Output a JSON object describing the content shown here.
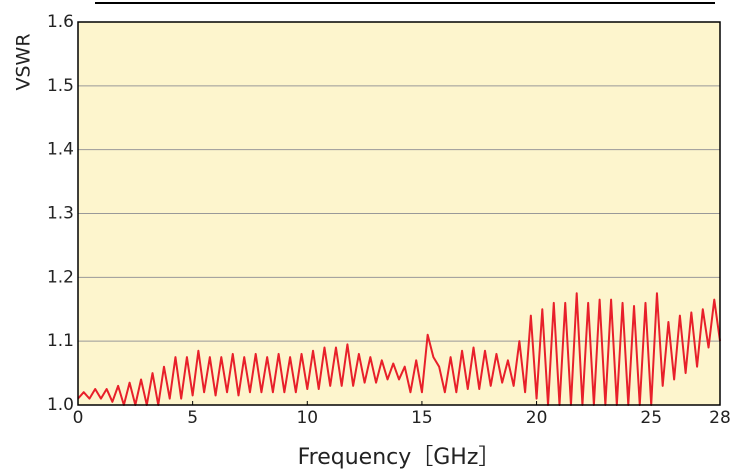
{
  "chart_data": {
    "type": "line",
    "x_label": "Frequency［GHz］",
    "y_label": "VSWR",
    "xlim": [
      0,
      28
    ],
    "xticks": [
      0,
      5,
      10,
      15,
      20,
      25,
      28
    ],
    "ylim": [
      1,
      1.6
    ],
    "yticks": [
      {
        "value": 1,
        "label": "1.0"
      },
      1.1,
      1.2,
      1.3,
      1.4,
      1.5,
      1.6
    ],
    "grid": true,
    "background": "#fdf5cd",
    "x": [
      0,
      0.25,
      0.5,
      0.75,
      1,
      1.25,
      1.5,
      1.75,
      2,
      2.25,
      2.5,
      2.75,
      3,
      3.25,
      3.5,
      3.75,
      4,
      4.25,
      4.5,
      4.75,
      5,
      5.25,
      5.5,
      5.75,
      6,
      6.25,
      6.5,
      6.75,
      7,
      7.25,
      7.5,
      7.75,
      8,
      8.25,
      8.5,
      8.75,
      9,
      9.25,
      9.5,
      9.75,
      10,
      10.25,
      10.5,
      10.75,
      11,
      11.25,
      11.5,
      11.75,
      12,
      12.25,
      12.5,
      12.75,
      13,
      13.25,
      13.5,
      13.75,
      14,
      14.25,
      14.5,
      14.75,
      15,
      15.25,
      15.5,
      15.75,
      16,
      16.25,
      16.5,
      16.75,
      17,
      17.25,
      17.5,
      17.75,
      18,
      18.25,
      18.5,
      18.75,
      19,
      19.25,
      19.5,
      19.75,
      20,
      20.25,
      20.5,
      20.75,
      21,
      21.25,
      21.5,
      21.75,
      22,
      22.25,
      22.5,
      22.75,
      23,
      23.25,
      23.5,
      23.75,
      24,
      24.25,
      24.5,
      24.75,
      25,
      25.25,
      25.5,
      25.75,
      26,
      26.25,
      26.5,
      26.75,
      27,
      27.25,
      27.5,
      27.75,
      28
    ],
    "series": [
      {
        "color": "#e8202a",
        "values": [
          1.01,
          1.02,
          1.01,
          1.025,
          1.01,
          1.025,
          1.005,
          1.03,
          1.0,
          1.035,
          1.0,
          1.04,
          1.0,
          1.05,
          1.0,
          1.06,
          1.01,
          1.075,
          1.01,
          1.075,
          1.015,
          1.085,
          1.02,
          1.075,
          1.015,
          1.075,
          1.02,
          1.08,
          1.015,
          1.075,
          1.02,
          1.08,
          1.02,
          1.075,
          1.02,
          1.08,
          1.02,
          1.075,
          1.02,
          1.08,
          1.025,
          1.085,
          1.025,
          1.09,
          1.03,
          1.09,
          1.03,
          1.095,
          1.03,
          1.08,
          1.035,
          1.075,
          1.035,
          1.07,
          1.04,
          1.065,
          1.04,
          1.06,
          1.02,
          1.07,
          1.02,
          1.11,
          1.075,
          1.06,
          1.02,
          1.075,
          1.02,
          1.085,
          1.025,
          1.09,
          1.025,
          1.085,
          1.03,
          1.08,
          1.035,
          1.07,
          1.03,
          1.1,
          1.02,
          1.14,
          1.01,
          1.15,
          1.0,
          1.16,
          1.0,
          1.16,
          1.0,
          1.175,
          1.0,
          1.16,
          1.0,
          1.165,
          1.0,
          1.165,
          1.0,
          1.16,
          1.0,
          1.155,
          1.0,
          1.16,
          1.0,
          1.175,
          1.03,
          1.13,
          1.04,
          1.14,
          1.05,
          1.145,
          1.06,
          1.15,
          1.09,
          1.165,
          1.1
        ]
      }
    ]
  }
}
